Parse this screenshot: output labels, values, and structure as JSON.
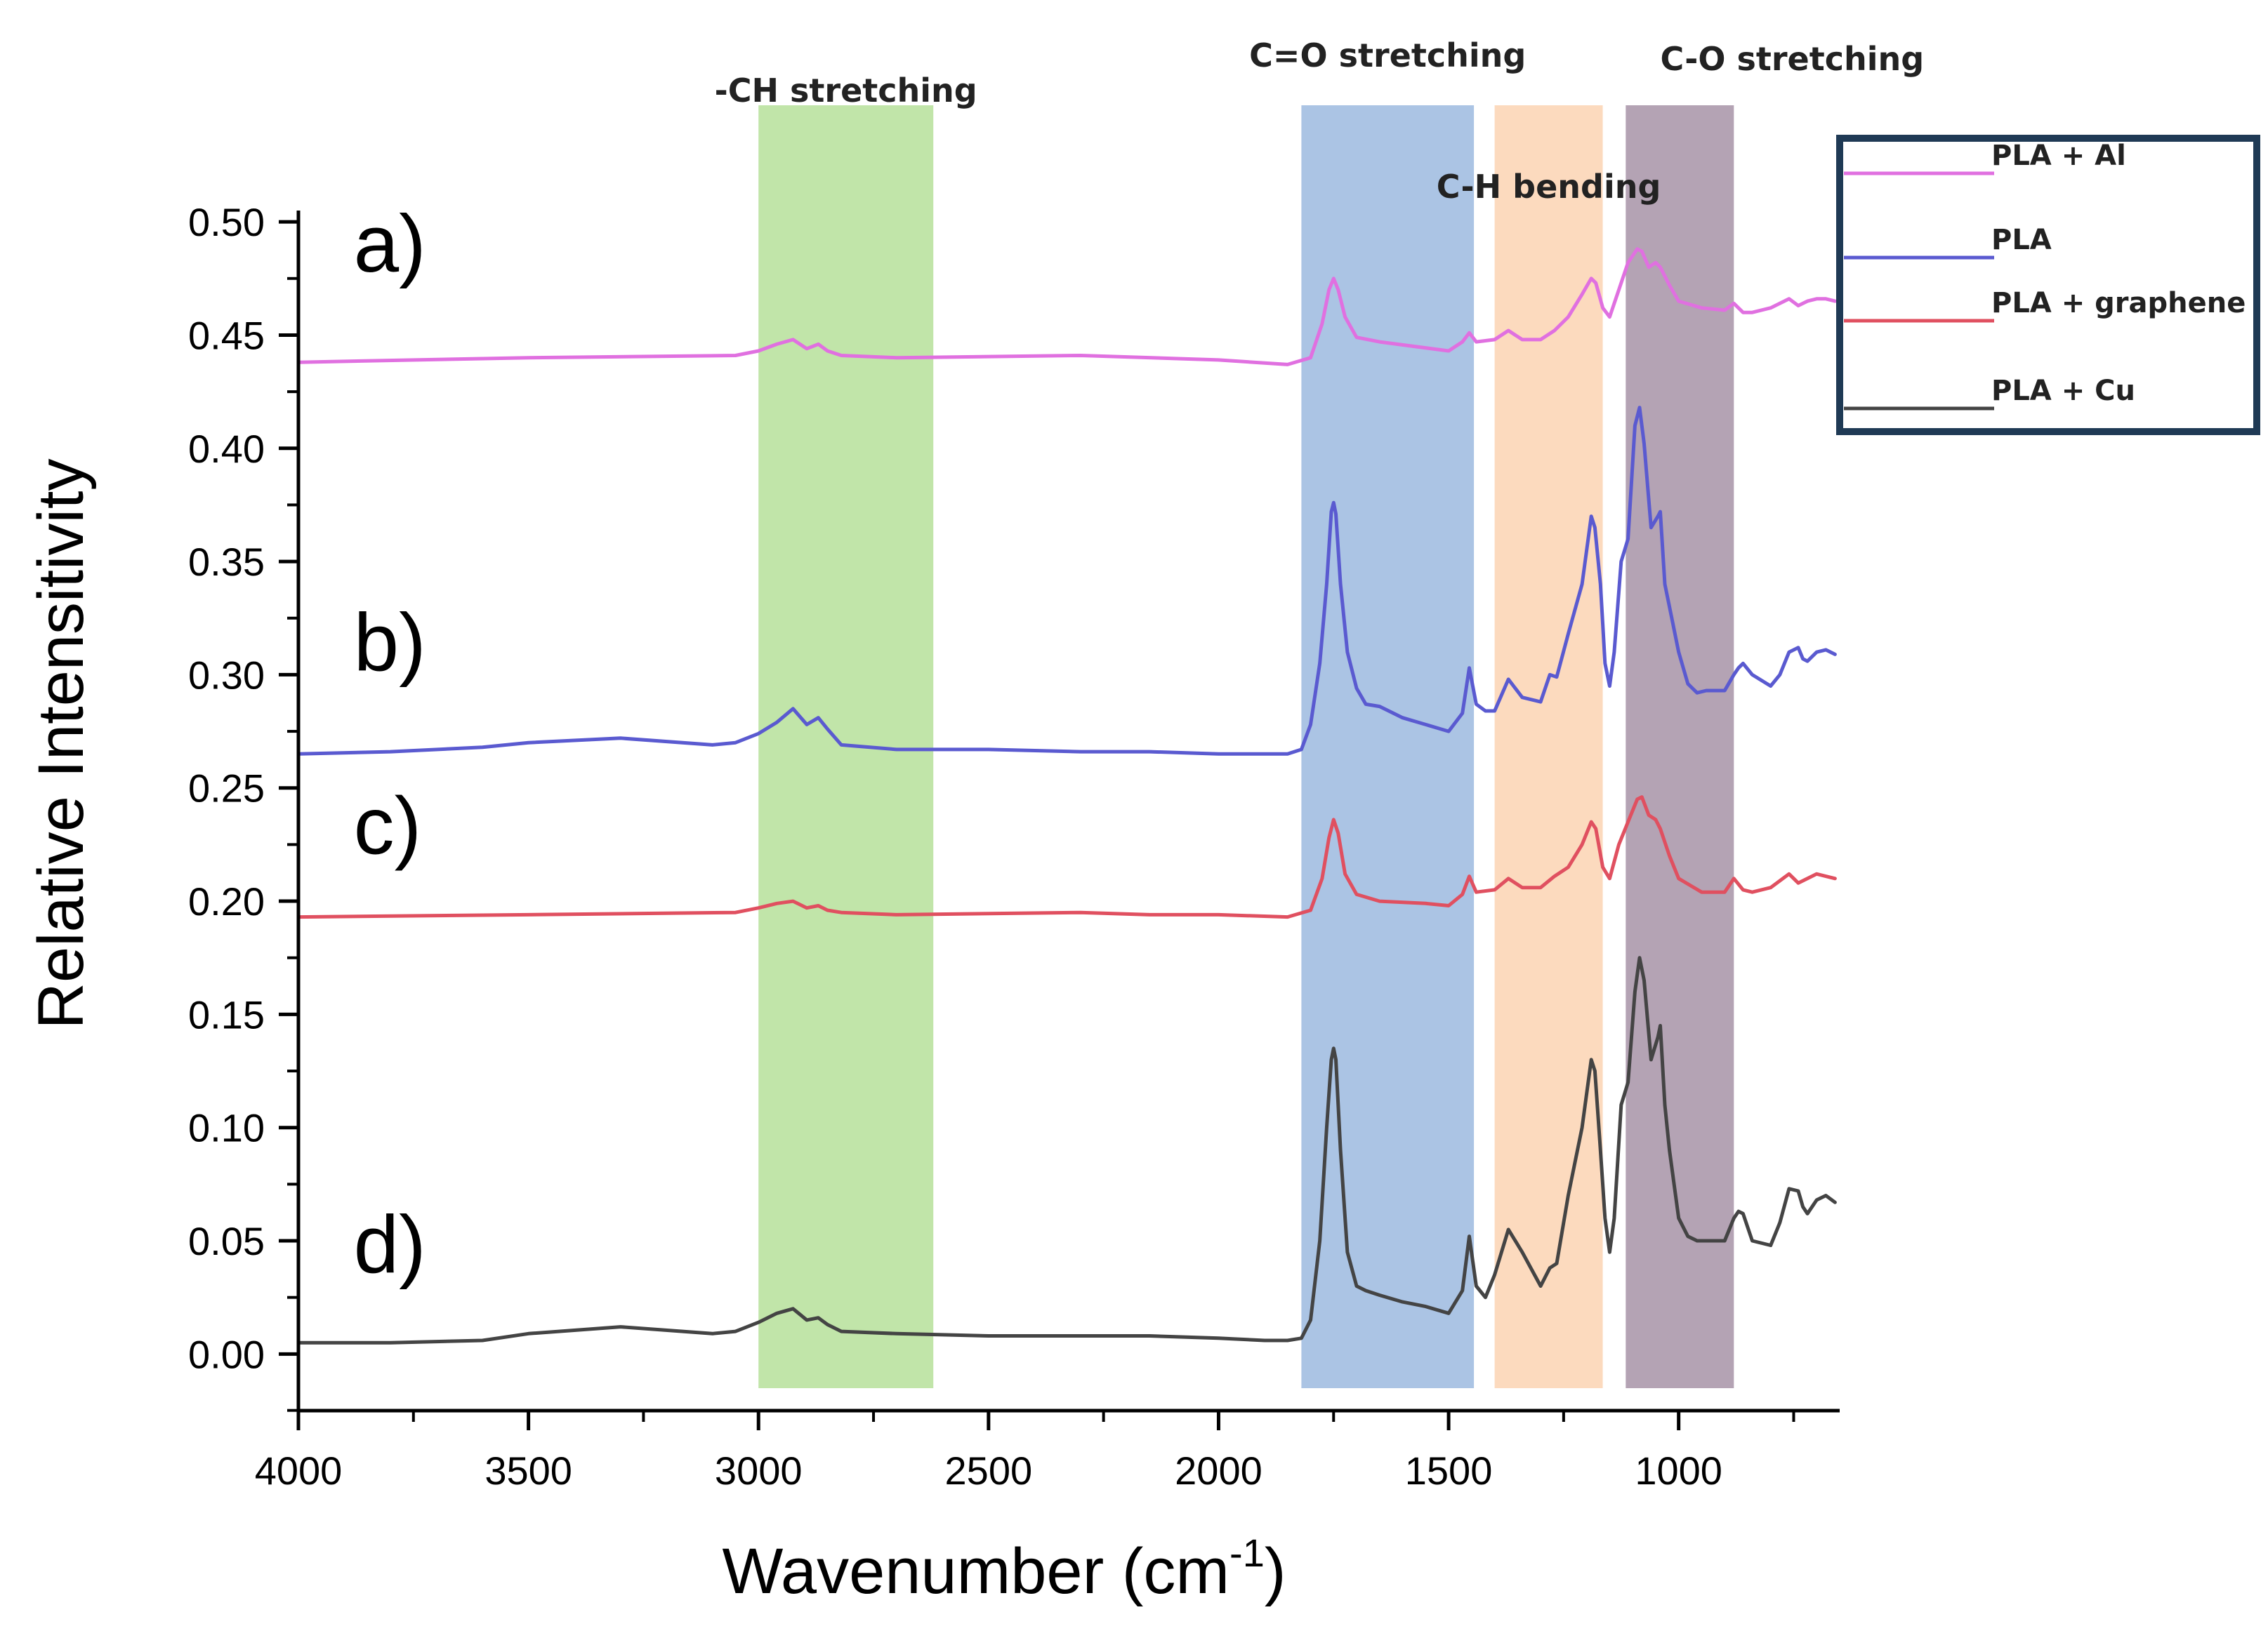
{
  "chart_data": {
    "type": "line",
    "title": "",
    "xlabel": "Wavenumber (cm",
    "xlabel_sup": "-1",
    "xlabel_close": ")",
    "ylabel": "Relative Intensitivity",
    "xlim": [
      4000,
      650
    ],
    "ylim": [
      -0.025,
      0.505
    ],
    "x_reversed": true,
    "grid": false,
    "x_ticks": [
      4000,
      3500,
      3000,
      2500,
      2000,
      1500,
      1000
    ],
    "x_tick_labels": [
      "4000",
      "3500",
      "3000",
      "2500",
      "2000",
      "1500",
      "1000"
    ],
    "y_ticks": [
      0.0,
      0.05,
      0.1,
      0.15,
      0.2,
      0.25,
      0.3,
      0.35,
      0.4,
      0.45,
      0.5
    ],
    "y_tick_labels": [
      "0.00",
      "0.05",
      "0.10",
      "0.15",
      "0.20",
      "0.25",
      "0.30",
      "0.35",
      "0.40",
      "0.45",
      "0.50"
    ],
    "bands": [
      {
        "name": "-CH stretching",
        "from": 3000,
        "to": 2620,
        "color": "#b6e09a"
      },
      {
        "name": "C=O stretching",
        "from": 1820,
        "to": 1445,
        "color": "#9cbadf"
      },
      {
        "name": "C-H bending",
        "from": 1400,
        "to": 1165,
        "color": "#fbd3b3"
      },
      {
        "name": "C-O stretching",
        "from": 1115,
        "to": 880,
        "color": "#a793a7"
      }
    ],
    "panel_labels": [
      {
        "text": "a)",
        "x": 3880,
        "y": 0.478
      },
      {
        "text": "b)",
        "x": 3880,
        "y": 0.302
      },
      {
        "text": "c)",
        "x": 3880,
        "y": 0.221
      },
      {
        "text": "d)",
        "x": 3880,
        "y": 0.036
      }
    ],
    "legend_placement": "top-right outside plot",
    "series": [
      {
        "name": "PLA + Al",
        "panel": "a)",
        "color": "#e070e0",
        "x": [
          4000,
          3500,
          3050,
          3000,
          2960,
          2925,
          2895,
          2870,
          2850,
          2820,
          2700,
          2300,
          2000,
          1850,
          1800,
          1775,
          1760,
          1750,
          1740,
          1725,
          1700,
          1650,
          1500,
          1470,
          1455,
          1440,
          1400,
          1370,
          1340,
          1300,
          1270,
          1240,
          1210,
          1190,
          1180,
          1165,
          1150,
          1130,
          1110,
          1090,
          1080,
          1065,
          1050,
          1040,
          1020,
          1000,
          950,
          900,
          880,
          860,
          840,
          800,
          760,
          740,
          720,
          700,
          680,
          660
        ],
        "y": [
          0.438,
          0.44,
          0.441,
          0.443,
          0.446,
          0.448,
          0.444,
          0.446,
          0.443,
          0.441,
          0.44,
          0.441,
          0.439,
          0.437,
          0.44,
          0.455,
          0.47,
          0.475,
          0.47,
          0.458,
          0.449,
          0.447,
          0.443,
          0.447,
          0.451,
          0.447,
          0.448,
          0.452,
          0.448,
          0.448,
          0.452,
          0.458,
          0.468,
          0.475,
          0.473,
          0.462,
          0.458,
          0.47,
          0.482,
          0.488,
          0.487,
          0.48,
          0.482,
          0.48,
          0.472,
          0.465,
          0.462,
          0.461,
          0.464,
          0.46,
          0.46,
          0.462,
          0.466,
          0.463,
          0.465,
          0.466,
          0.466,
          0.465
        ]
      },
      {
        "name": "PLA",
        "panel": "b)",
        "color": "#5a5ad0",
        "x": [
          4000,
          3800,
          3600,
          3500,
          3300,
          3100,
          3050,
          3000,
          2960,
          2925,
          2895,
          2870,
          2850,
          2820,
          2700,
          2500,
          2300,
          2150,
          2000,
          1900,
          1850,
          1820,
          1800,
          1780,
          1765,
          1755,
          1750,
          1745,
          1735,
          1720,
          1700,
          1680,
          1650,
          1600,
          1550,
          1500,
          1470,
          1455,
          1440,
          1420,
          1400,
          1370,
          1340,
          1300,
          1280,
          1265,
          1240,
          1210,
          1190,
          1182,
          1170,
          1160,
          1150,
          1140,
          1125,
          1110,
          1095,
          1085,
          1075,
          1060,
          1045,
          1040,
          1030,
          1020,
          1000,
          980,
          960,
          940,
          900,
          880,
          870,
          860,
          840,
          800,
          780,
          760,
          740,
          730,
          720,
          700,
          680,
          660
        ],
        "y": [
          0.265,
          0.266,
          0.268,
          0.27,
          0.272,
          0.269,
          0.27,
          0.274,
          0.279,
          0.285,
          0.278,
          0.281,
          0.276,
          0.269,
          0.267,
          0.267,
          0.266,
          0.266,
          0.265,
          0.265,
          0.265,
          0.267,
          0.278,
          0.305,
          0.34,
          0.372,
          0.376,
          0.371,
          0.34,
          0.31,
          0.294,
          0.287,
          0.286,
          0.281,
          0.278,
          0.275,
          0.283,
          0.303,
          0.287,
          0.284,
          0.284,
          0.298,
          0.29,
          0.288,
          0.3,
          0.299,
          0.318,
          0.34,
          0.37,
          0.365,
          0.34,
          0.305,
          0.295,
          0.31,
          0.35,
          0.36,
          0.41,
          0.418,
          0.402,
          0.365,
          0.37,
          0.372,
          0.34,
          0.33,
          0.31,
          0.296,
          0.292,
          0.293,
          0.293,
          0.3,
          0.303,
          0.305,
          0.3,
          0.295,
          0.3,
          0.31,
          0.312,
          0.307,
          0.306,
          0.31,
          0.311,
          0.309
        ]
      },
      {
        "name": "PLA + graphene",
        "panel": "c)",
        "color": "#e05060",
        "x": [
          4000,
          3500,
          3050,
          3000,
          2960,
          2925,
          2895,
          2870,
          2850,
          2820,
          2700,
          2300,
          2150,
          2000,
          1850,
          1800,
          1775,
          1760,
          1750,
          1740,
          1725,
          1700,
          1650,
          1550,
          1500,
          1470,
          1455,
          1440,
          1400,
          1370,
          1340,
          1300,
          1270,
          1240,
          1210,
          1190,
          1180,
          1165,
          1150,
          1130,
          1110,
          1090,
          1080,
          1065,
          1050,
          1040,
          1020,
          1000,
          950,
          900,
          880,
          860,
          840,
          800,
          760,
          740,
          720,
          700,
          680,
          660
        ],
        "y": [
          0.193,
          0.194,
          0.195,
          0.197,
          0.199,
          0.2,
          0.197,
          0.198,
          0.196,
          0.195,
          0.194,
          0.195,
          0.194,
          0.194,
          0.193,
          0.196,
          0.21,
          0.228,
          0.236,
          0.23,
          0.212,
          0.203,
          0.2,
          0.199,
          0.198,
          0.203,
          0.211,
          0.204,
          0.205,
          0.21,
          0.206,
          0.206,
          0.211,
          0.215,
          0.225,
          0.235,
          0.232,
          0.215,
          0.21,
          0.225,
          0.235,
          0.245,
          0.246,
          0.238,
          0.236,
          0.232,
          0.22,
          0.21,
          0.204,
          0.204,
          0.21,
          0.205,
          0.204,
          0.206,
          0.212,
          0.208,
          0.21,
          0.212,
          0.211,
          0.21
        ]
      },
      {
        "name": "PLA + Cu",
        "panel": "d)",
        "color": "#444444",
        "x": [
          4000,
          3800,
          3600,
          3500,
          3300,
          3100,
          3050,
          3000,
          2960,
          2925,
          2895,
          2870,
          2850,
          2820,
          2700,
          2500,
          2300,
          2150,
          2000,
          1900,
          1850,
          1820,
          1800,
          1780,
          1765,
          1755,
          1750,
          1745,
          1735,
          1720,
          1700,
          1680,
          1650,
          1600,
          1550,
          1500,
          1470,
          1455,
          1440,
          1420,
          1400,
          1370,
          1340,
          1300,
          1280,
          1265,
          1240,
          1210,
          1190,
          1182,
          1170,
          1160,
          1150,
          1140,
          1125,
          1110,
          1095,
          1085,
          1075,
          1060,
          1045,
          1040,
          1030,
          1020,
          1000,
          980,
          960,
          940,
          900,
          880,
          870,
          860,
          840,
          800,
          780,
          760,
          740,
          730,
          720,
          700,
          680,
          660
        ],
        "y": [
          0.005,
          0.005,
          0.006,
          0.009,
          0.012,
          0.009,
          0.01,
          0.014,
          0.018,
          0.02,
          0.015,
          0.016,
          0.013,
          0.01,
          0.009,
          0.008,
          0.008,
          0.008,
          0.007,
          0.006,
          0.006,
          0.007,
          0.015,
          0.05,
          0.1,
          0.13,
          0.135,
          0.13,
          0.09,
          0.045,
          0.03,
          0.028,
          0.026,
          0.023,
          0.021,
          0.018,
          0.028,
          0.052,
          0.03,
          0.025,
          0.035,
          0.055,
          0.045,
          0.03,
          0.038,
          0.04,
          0.07,
          0.1,
          0.13,
          0.125,
          0.09,
          0.06,
          0.045,
          0.06,
          0.11,
          0.12,
          0.16,
          0.175,
          0.165,
          0.13,
          0.14,
          0.145,
          0.11,
          0.09,
          0.06,
          0.052,
          0.05,
          0.05,
          0.05,
          0.06,
          0.063,
          0.062,
          0.05,
          0.048,
          0.058,
          0.073,
          0.072,
          0.065,
          0.062,
          0.068,
          0.07,
          0.067
        ]
      }
    ]
  }
}
